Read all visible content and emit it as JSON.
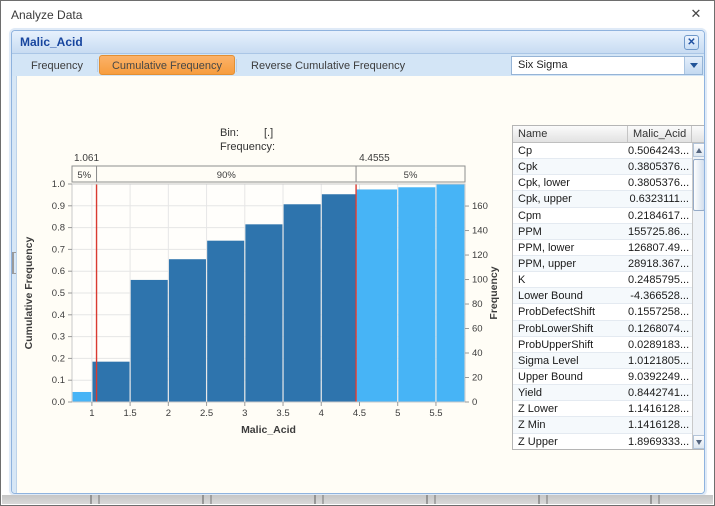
{
  "dialog": {
    "title": "Analyze Data",
    "close_icon": "✕"
  },
  "panel": {
    "title": "Malic_Acid",
    "close_icon": "✕",
    "accent_color": "#f79d3e",
    "accent_color_light": "#fbb269",
    "tabs": [
      {
        "label": "Frequency",
        "selected": false
      },
      {
        "label": "Cumulative Frequency",
        "selected": true
      },
      {
        "label": "Reverse Cumulative Frequency",
        "selected": false
      }
    ],
    "dropdown": {
      "value": "Six Sigma"
    }
  },
  "readout": {
    "bin_label": "Bin:",
    "bin_value": "[.]",
    "frequency_label": "Frequency:",
    "frequency_value": ""
  },
  "chart_data": {
    "type": "bar",
    "subtype": "cumulative-frequency-histogram",
    "title": "",
    "xlabel": "Malic_Acid",
    "ylabel_left": "Cumulative Frequency",
    "ylabel_right": "Frequency",
    "xlim": [
      0.74,
      5.88
    ],
    "ylim_left": [
      0,
      1.0
    ],
    "right_axis_max_value": 178,
    "x_tick_values": [
      1,
      1.5,
      2,
      2.5,
      3,
      3.5,
      4,
      4.5,
      5,
      5.5
    ],
    "x_tick_labels": [
      "1",
      "1.5",
      "2",
      "2.5",
      "3",
      "3.5",
      "4",
      "4.5",
      "5",
      "5.5"
    ],
    "left_tick_values": [
      0,
      0.1,
      0.2,
      0.3,
      0.4,
      0.5,
      0.6,
      0.7,
      0.8,
      0.9,
      1.0
    ],
    "left_tick_labels": [
      "0.0",
      "0.1",
      "0.2",
      "0.3",
      "0.4",
      "0.5",
      "0.6",
      "0.7",
      "0.8",
      "0.9",
      "1.0"
    ],
    "right_tick_values": [
      0,
      20,
      40,
      60,
      80,
      100,
      120,
      140,
      160
    ],
    "right_tick_labels": [
      "0",
      "20",
      "40",
      "60",
      "80",
      "100",
      "120",
      "140",
      "160"
    ],
    "grid": true,
    "bins": [
      {
        "x0": 0.74,
        "x1": 1.0,
        "cum": 0.046,
        "zone": "out"
      },
      {
        "x0": 1.0,
        "x1": 1.5,
        "cum": 0.185,
        "zone": "in"
      },
      {
        "x0": 1.5,
        "x1": 2.0,
        "cum": 0.56,
        "zone": "in"
      },
      {
        "x0": 2.0,
        "x1": 2.5,
        "cum": 0.655,
        "zone": "in"
      },
      {
        "x0": 2.5,
        "x1": 3.0,
        "cum": 0.74,
        "zone": "in"
      },
      {
        "x0": 3.0,
        "x1": 3.5,
        "cum": 0.815,
        "zone": "in"
      },
      {
        "x0": 3.5,
        "x1": 4.0,
        "cum": 0.907,
        "zone": "in"
      },
      {
        "x0": 4.0,
        "x1": 4.4555,
        "cum": 0.953,
        "zone": "in"
      },
      {
        "x0": 4.4555,
        "x1": 5.0,
        "cum": 0.975,
        "zone": "out"
      },
      {
        "x0": 5.0,
        "x1": 5.5,
        "cum": 0.985,
        "zone": "out"
      },
      {
        "x0": 5.5,
        "x1": 5.88,
        "cum": 1.0,
        "zone": "out"
      }
    ],
    "spec_limits": {
      "lower": 1.061,
      "upper": 4.4555,
      "lower_label": "1.061",
      "upper_label": "4.4555",
      "region_labels": [
        "5%",
        "90%",
        "5%"
      ]
    },
    "colors": {
      "bar_in_spec": "#2e74ad",
      "bar_out_spec": "#47b4f6",
      "limit_line": "#d93a30",
      "grid": "#e6e6e6",
      "plot_border": "#c9c9c9",
      "band_border": "#8e8e8e",
      "text": "#3c3c3c"
    }
  },
  "table": {
    "columns": [
      "Name",
      "Malic_Acid"
    ],
    "rows": [
      [
        "Cp",
        "0.5064243..."
      ],
      [
        "Cpk",
        "0.3805376..."
      ],
      [
        "Cpk, lower",
        "0.3805376..."
      ],
      [
        "Cpk, upper",
        "0.6323111..."
      ],
      [
        "Cpm",
        "0.2184617..."
      ],
      [
        "PPM",
        "155725.86..."
      ],
      [
        "PPM, lower",
        "126807.49..."
      ],
      [
        "PPM, upper",
        "28918.367..."
      ],
      [
        "K",
        "0.2485795..."
      ],
      [
        "Lower Bound",
        "-4.366528..."
      ],
      [
        "ProbDefectShift",
        "0.1557258..."
      ],
      [
        "ProbLowerShift",
        "0.1268074..."
      ],
      [
        "ProbUpperShift",
        "0.0289183..."
      ],
      [
        "Sigma Level",
        "1.0121805..."
      ],
      [
        "Upper Bound",
        "9.0392249..."
      ],
      [
        "Yield",
        "0.8442741..."
      ],
      [
        "Z Lower",
        "1.1416128..."
      ],
      [
        "Z Min",
        "1.1416128..."
      ],
      [
        "Z Upper",
        "1.8969333..."
      ]
    ]
  }
}
